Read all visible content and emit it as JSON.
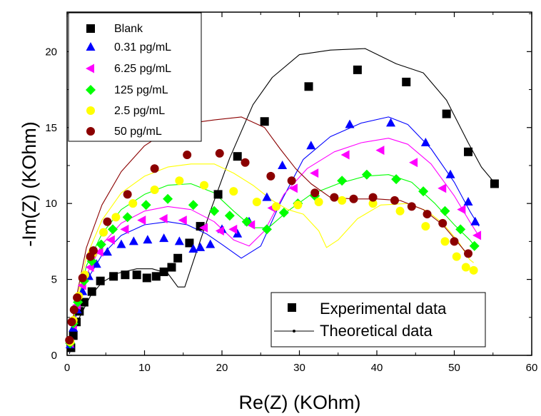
{
  "chart_data": {
    "type": "scatter",
    "xlabel": "Re(Z) (KOhm)",
    "ylabel": "-Im(Z) (KOhm)",
    "xlim": [
      0,
      60
    ],
    "ylim": [
      0,
      22.6
    ],
    "x_ticks": [
      "0",
      "10",
      "20",
      "30",
      "40",
      "50",
      "60"
    ],
    "y_ticks": [
      "0",
      "5",
      "10",
      "15",
      "20"
    ],
    "legend_position": "top-left",
    "type_legend": {
      "position": "bottom-right",
      "experimental_label": "Experimental data",
      "theoretical_label": "Theoretical data"
    },
    "series": [
      {
        "name": "Blank",
        "marker": "square",
        "color": "#000000",
        "points": [
          [
            0.5,
            0.5
          ],
          [
            0.8,
            1.3
          ],
          [
            1.2,
            2.2
          ],
          [
            1.6,
            2.9
          ],
          [
            2.2,
            3.5
          ],
          [
            3.2,
            4.2
          ],
          [
            4.3,
            4.9
          ],
          [
            6.0,
            5.2
          ],
          [
            7.5,
            5.3
          ],
          [
            9.0,
            5.3
          ],
          [
            10.3,
            5.1
          ],
          [
            11.5,
            5.2
          ],
          [
            12.5,
            5.5
          ],
          [
            13.5,
            5.8
          ],
          [
            14.3,
            6.4
          ],
          [
            15.8,
            7.4
          ],
          [
            17.2,
            8.5
          ],
          [
            19.5,
            10.6
          ],
          [
            22.0,
            13.1
          ],
          [
            25.5,
            15.4
          ],
          [
            31.2,
            17.7
          ],
          [
            37.5,
            18.8
          ],
          [
            43.8,
            18.0
          ],
          [
            49.0,
            15.9
          ],
          [
            51.8,
            13.4
          ],
          [
            55.2,
            11.3
          ]
        ],
        "fit": [
          [
            0.3,
            0.1
          ],
          [
            0.8,
            1.2
          ],
          [
            1.6,
            2.5
          ],
          [
            3.0,
            3.9
          ],
          [
            4.5,
            4.8
          ],
          [
            6.5,
            5.4
          ],
          [
            9.0,
            5.7
          ],
          [
            11.0,
            5.7
          ],
          [
            13.0,
            5.4
          ],
          [
            14.3,
            4.5
          ],
          [
            15.2,
            4.5
          ],
          [
            16.5,
            6.5
          ],
          [
            18.5,
            9.5
          ],
          [
            21.0,
            13.0
          ],
          [
            24.0,
            16.5
          ],
          [
            26.5,
            18.3
          ],
          [
            30.0,
            19.8
          ],
          [
            34.0,
            20.1
          ],
          [
            38.5,
            20.2
          ],
          [
            42.5,
            19.2
          ],
          [
            46.0,
            18.6
          ],
          [
            49.0,
            16.8
          ],
          [
            51.8,
            14.0
          ],
          [
            53.5,
            12.4
          ],
          [
            55.3,
            11.3
          ]
        ]
      },
      {
        "name": "0.31 pg/mL",
        "marker": "triangle",
        "color": "#0000ff",
        "points": [
          [
            0.4,
            0.7
          ],
          [
            0.8,
            1.8
          ],
          [
            1.3,
            3.0
          ],
          [
            2.0,
            4.2
          ],
          [
            2.8,
            5.2
          ],
          [
            3.8,
            6.0
          ],
          [
            5.2,
            6.8
          ],
          [
            7.0,
            7.3
          ],
          [
            8.6,
            7.5
          ],
          [
            10.4,
            7.6
          ],
          [
            12.5,
            7.7
          ],
          [
            14.5,
            7.5
          ],
          [
            16.3,
            7.0
          ],
          [
            17.2,
            7.1
          ],
          [
            18.5,
            7.3
          ],
          [
            20.0,
            8.3
          ],
          [
            22.0,
            8.0
          ],
          [
            23.5,
            8.8
          ],
          [
            25.8,
            10.4
          ],
          [
            27.8,
            12.5
          ],
          [
            31.5,
            13.8
          ],
          [
            36.5,
            15.2
          ],
          [
            41.8,
            15.3
          ],
          [
            46.3,
            14.0
          ],
          [
            49.5,
            11.9
          ],
          [
            51.8,
            10.1
          ],
          [
            52.7,
            8.8
          ]
        ],
        "fit": [
          [
            0.3,
            0.2
          ],
          [
            1.0,
            2.3
          ],
          [
            2.5,
            4.9
          ],
          [
            4.5,
            6.6
          ],
          [
            7.0,
            7.9
          ],
          [
            10.0,
            8.6
          ],
          [
            13.0,
            8.8
          ],
          [
            15.5,
            8.6
          ],
          [
            18.0,
            8.0
          ],
          [
            20.0,
            7.3
          ],
          [
            22.5,
            6.4
          ],
          [
            25.0,
            7.2
          ],
          [
            27.5,
            10.0
          ],
          [
            30.5,
            12.9
          ],
          [
            34.0,
            14.4
          ],
          [
            38.0,
            15.3
          ],
          [
            41.5,
            15.7
          ],
          [
            44.0,
            15.2
          ],
          [
            47.0,
            13.6
          ],
          [
            50.0,
            11.4
          ],
          [
            52.0,
            9.5
          ],
          [
            53.2,
            8.5
          ]
        ]
      },
      {
        "name": "6.25 pg/mL",
        "marker": "triangle-left",
        "color": "#ff00ff",
        "points": [
          [
            0.4,
            0.8
          ],
          [
            0.8,
            2.0
          ],
          [
            1.3,
            3.3
          ],
          [
            2.0,
            4.6
          ],
          [
            3.0,
            5.8
          ],
          [
            4.2,
            6.8
          ],
          [
            5.7,
            7.6
          ],
          [
            7.5,
            8.3
          ],
          [
            9.7,
            8.9
          ],
          [
            12.5,
            9.0
          ],
          [
            15.0,
            8.9
          ],
          [
            17.7,
            8.4
          ],
          [
            19.8,
            8.2
          ],
          [
            21.5,
            8.3
          ],
          [
            23.8,
            8.6
          ],
          [
            26.5,
            9.7
          ],
          [
            29.3,
            11.0
          ],
          [
            32.0,
            12.0
          ],
          [
            36.0,
            13.2
          ],
          [
            40.5,
            13.5
          ],
          [
            44.8,
            12.7
          ],
          [
            48.5,
            11.0
          ],
          [
            51.0,
            9.6
          ],
          [
            53.0,
            7.9
          ]
        ],
        "fit": [
          [
            0.3,
            0.3
          ],
          [
            1.0,
            2.5
          ],
          [
            2.5,
            5.3
          ],
          [
            4.5,
            7.3
          ],
          [
            7.0,
            8.7
          ],
          [
            10.0,
            9.5
          ],
          [
            13.0,
            9.8
          ],
          [
            16.0,
            9.6
          ],
          [
            19.0,
            8.8
          ],
          [
            21.5,
            7.6
          ],
          [
            23.5,
            7.2
          ],
          [
            25.5,
            8.2
          ],
          [
            28.0,
            10.6
          ],
          [
            31.0,
            12.3
          ],
          [
            34.5,
            13.4
          ],
          [
            38.0,
            14.0
          ],
          [
            41.5,
            14.3
          ],
          [
            44.0,
            13.9
          ],
          [
            47.0,
            12.6
          ],
          [
            50.0,
            10.5
          ],
          [
            52.0,
            8.8
          ],
          [
            53.0,
            8.0
          ]
        ]
      },
      {
        "name": "125 pg/mL",
        "marker": "diamond",
        "color": "#00ff00",
        "points": [
          [
            0.4,
            0.8
          ],
          [
            0.8,
            2.1
          ],
          [
            1.4,
            3.5
          ],
          [
            2.2,
            4.9
          ],
          [
            3.2,
            6.2
          ],
          [
            4.4,
            7.3
          ],
          [
            5.9,
            8.3
          ],
          [
            7.8,
            9.1
          ],
          [
            10.2,
            9.9
          ],
          [
            13.0,
            10.3
          ],
          [
            16.3,
            9.9
          ],
          [
            19.0,
            9.5
          ],
          [
            21.0,
            9.2
          ],
          [
            23.2,
            8.8
          ],
          [
            25.8,
            8.3
          ],
          [
            28.0,
            9.4
          ],
          [
            29.8,
            10.0
          ],
          [
            32.0,
            10.5
          ],
          [
            35.5,
            11.5
          ],
          [
            38.7,
            11.9
          ],
          [
            42.5,
            11.6
          ],
          [
            46.0,
            10.8
          ],
          [
            48.8,
            9.5
          ],
          [
            50.8,
            8.3
          ],
          [
            52.6,
            7.2
          ]
        ],
        "fit": [
          [
            0.3,
            0.4
          ],
          [
            1.0,
            2.7
          ],
          [
            2.5,
            5.9
          ],
          [
            4.5,
            8.0
          ],
          [
            7.0,
            9.6
          ],
          [
            10.0,
            10.6
          ],
          [
            13.0,
            11.2
          ],
          [
            16.0,
            11.3
          ],
          [
            19.0,
            10.7
          ],
          [
            21.5,
            9.5
          ],
          [
            24.0,
            8.4
          ],
          [
            26.0,
            8.4
          ],
          [
            28.5,
            9.5
          ],
          [
            31.5,
            10.6
          ],
          [
            35.0,
            11.3
          ],
          [
            38.5,
            11.8
          ],
          [
            41.5,
            11.9
          ],
          [
            44.5,
            11.4
          ],
          [
            47.5,
            10.0
          ],
          [
            50.0,
            8.6
          ],
          [
            52.0,
            7.6
          ],
          [
            52.8,
            7.1
          ]
        ]
      },
      {
        "name": "2.5 pg/mL",
        "marker": "circle",
        "color": "#ffff00",
        "points": [
          [
            0.4,
            0.9
          ],
          [
            0.8,
            2.3
          ],
          [
            1.5,
            3.9
          ],
          [
            2.3,
            5.3
          ],
          [
            3.3,
            6.7
          ],
          [
            4.7,
            8.1
          ],
          [
            6.3,
            9.1
          ],
          [
            8.5,
            10.0
          ],
          [
            11.3,
            10.9
          ],
          [
            14.5,
            11.5
          ],
          [
            17.7,
            11.2
          ],
          [
            21.5,
            10.8
          ],
          [
            24.5,
            10.1
          ],
          [
            27.0,
            9.8
          ],
          [
            29.8,
            9.9
          ],
          [
            32.5,
            10.1
          ],
          [
            35.5,
            10.2
          ],
          [
            39.5,
            10.0
          ],
          [
            43.0,
            9.5
          ],
          [
            46.3,
            8.5
          ],
          [
            48.8,
            7.5
          ],
          [
            50.3,
            6.5
          ],
          [
            51.5,
            5.8
          ],
          [
            52.5,
            5.6
          ]
        ],
        "fit": [
          [
            0.3,
            0.5
          ],
          [
            1.0,
            3.0
          ],
          [
            2.5,
            6.5
          ],
          [
            4.5,
            8.9
          ],
          [
            7.0,
            10.7
          ],
          [
            10.0,
            11.8
          ],
          [
            13.0,
            12.4
          ],
          [
            16.0,
            12.6
          ],
          [
            19.0,
            12.6
          ],
          [
            21.5,
            12.0
          ],
          [
            24.0,
            11.2
          ],
          [
            26.5,
            10.2
          ],
          [
            28.5,
            9.6
          ],
          [
            30.5,
            9.3
          ],
          [
            32.5,
            8.2
          ],
          [
            33.5,
            7.1
          ],
          [
            35.0,
            7.6
          ],
          [
            37.5,
            9.0
          ],
          [
            40.5,
            9.9
          ],
          [
            44.0,
            10.0
          ],
          [
            46.5,
            9.5
          ],
          [
            48.5,
            8.7
          ],
          [
            50.5,
            7.5
          ],
          [
            52.0,
            6.3
          ],
          [
            52.5,
            6.1
          ]
        ]
      },
      {
        "name": "50 pg/mL",
        "marker": "circle",
        "color": "#8b0000",
        "points": [
          [
            0.3,
            1.0
          ],
          [
            0.6,
            2.2
          ],
          [
            0.9,
            3.0
          ],
          [
            1.3,
            3.8
          ],
          [
            2.0,
            5.1
          ],
          [
            3.0,
            6.5
          ],
          [
            3.4,
            6.9
          ],
          [
            5.2,
            8.8
          ],
          [
            7.8,
            10.6
          ],
          [
            11.3,
            12.3
          ],
          [
            15.5,
            13.2
          ],
          [
            19.7,
            13.3
          ],
          [
            23.0,
            12.7
          ],
          [
            26.3,
            11.8
          ],
          [
            29.0,
            11.5
          ],
          [
            32.0,
            10.7
          ],
          [
            34.5,
            10.4
          ],
          [
            37.0,
            10.3
          ],
          [
            39.5,
            10.4
          ],
          [
            42.3,
            10.2
          ],
          [
            44.5,
            9.8
          ],
          [
            46.5,
            9.3
          ],
          [
            48.5,
            8.7
          ],
          [
            50.0,
            7.5
          ],
          [
            51.8,
            6.7
          ]
        ],
        "fit": [
          [
            0.3,
            0.6
          ],
          [
            1.0,
            3.3
          ],
          [
            2.5,
            7.1
          ],
          [
            4.5,
            9.9
          ],
          [
            7.0,
            12.1
          ],
          [
            10.0,
            13.8
          ],
          [
            13.0,
            14.8
          ],
          [
            16.0,
            15.3
          ],
          [
            19.0,
            15.5
          ],
          [
            22.5,
            15.7
          ],
          [
            25.5,
            15.0
          ],
          [
            27.5,
            13.6
          ],
          [
            29.5,
            12.3
          ],
          [
            31.5,
            11.3
          ],
          [
            34.0,
            10.4
          ],
          [
            37.0,
            10.3
          ],
          [
            40.0,
            10.3
          ],
          [
            43.0,
            10.2
          ],
          [
            46.0,
            9.6
          ],
          [
            48.5,
            8.6
          ],
          [
            50.5,
            7.4
          ],
          [
            51.8,
            6.6
          ]
        ]
      }
    ]
  }
}
